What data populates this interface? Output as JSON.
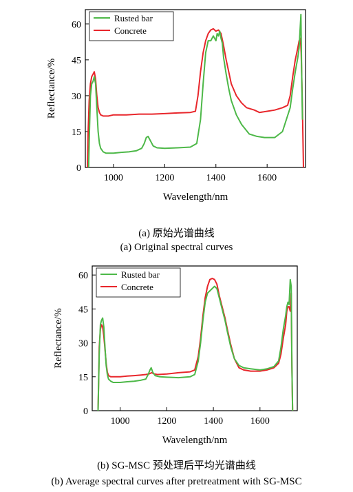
{
  "captions": {
    "a_cn": "(a)  原始光谱曲线",
    "a_en": "(a) Original spectral curves",
    "b_cn": "(b) SG-MSC 预处理后平均光谱曲线",
    "b_en": "(b) Average spectral curves after pretreatment with SG-MSC"
  },
  "colors": {
    "rusted_bar": "#4db848",
    "concrete": "#e8262b"
  },
  "chart_data": [
    {
      "type": "line",
      "title": "",
      "xlabel": "Wavelength/nm",
      "ylabel": "Reflectance/%",
      "xlim": [
        890,
        1750
      ],
      "ylim": [
        0,
        66
      ],
      "xticks": [
        1000,
        1200,
        1400,
        1600
      ],
      "yticks": [
        0,
        15,
        30,
        45,
        60
      ],
      "grid": false,
      "legend_position": "top-left",
      "series": [
        {
          "name": "Rusted bar",
          "color": "#4db848",
          "x": [
            903,
            906,
            910,
            915,
            920,
            925,
            930,
            935,
            940,
            945,
            950,
            960,
            970,
            985,
            1000,
            1030,
            1060,
            1090,
            1110,
            1120,
            1128,
            1135,
            1145,
            1155,
            1170,
            1200,
            1250,
            1300,
            1325,
            1340,
            1350,
            1360,
            1370,
            1380,
            1390,
            1395,
            1400,
            1405,
            1410,
            1415,
            1420,
            1425,
            1430,
            1440,
            1450,
            1460,
            1480,
            1500,
            1530,
            1560,
            1590,
            1630,
            1660,
            1690,
            1700,
            1710,
            1720,
            1725,
            1728,
            1732,
            1735,
            1738
          ],
          "y": [
            0,
            15,
            30,
            35,
            36,
            38,
            35,
            25,
            15,
            10,
            8,
            6.5,
            6,
            6,
            6,
            6.3,
            6.5,
            7,
            8,
            10,
            12.5,
            13,
            11,
            9,
            8.2,
            8,
            8.2,
            8.5,
            10,
            20,
            35,
            48,
            53,
            53,
            55,
            54,
            53,
            56,
            55,
            57,
            54,
            52,
            46,
            39,
            33,
            28,
            22,
            18,
            14,
            13,
            12.5,
            12.5,
            15,
            25,
            33,
            40,
            46,
            50,
            56,
            64,
            40,
            20
          ]
        },
        {
          "name": "Concrete",
          "color": "#e8262b",
          "x": [
            898,
            901,
            905,
            910,
            915,
            920,
            925,
            930,
            935,
            940,
            945,
            950,
            960,
            980,
            1000,
            1050,
            1100,
            1150,
            1200,
            1250,
            1300,
            1320,
            1330,
            1340,
            1350,
            1360,
            1370,
            1380,
            1390,
            1400,
            1410,
            1420,
            1430,
            1440,
            1450,
            1460,
            1480,
            1500,
            1520,
            1550,
            1570,
            1600,
            1630,
            1660,
            1680,
            1690,
            1700,
            1710,
            1720,
            1725,
            1730,
            1733,
            1738,
            1742
          ],
          "y": [
            0,
            15,
            28,
            35,
            38,
            39,
            40,
            37,
            30,
            25,
            23,
            22,
            21.5,
            21.5,
            22,
            22,
            22.3,
            22.3,
            22.5,
            22.8,
            23,
            23.5,
            30,
            40,
            48,
            53,
            56,
            57.5,
            58,
            57,
            57.5,
            56,
            51,
            45,
            40,
            35,
            30,
            27,
            25,
            24,
            23,
            23.5,
            24,
            25,
            26,
            30,
            38,
            45,
            50,
            53,
            54,
            48,
            25,
            0
          ]
        }
      ]
    },
    {
      "type": "line",
      "title": "",
      "xlabel": "Wavelength/nm",
      "ylabel": "Reflectance/%",
      "xlim": [
        880,
        1760
      ],
      "ylim": [
        0,
        64
      ],
      "xticks": [
        1000,
        1200,
        1400,
        1600
      ],
      "yticks": [
        0,
        15,
        30,
        45,
        60
      ],
      "grid": false,
      "legend_position": "top-left",
      "series": [
        {
          "name": "Rusted bar",
          "color": "#4db848",
          "x": [
            905,
            910,
            915,
            920,
            925,
            930,
            935,
            940,
            945,
            950,
            960,
            970,
            985,
            1000,
            1030,
            1060,
            1090,
            1110,
            1120,
            1128,
            1133,
            1140,
            1150,
            1170,
            1200,
            1250,
            1300,
            1320,
            1335,
            1345,
            1355,
            1365,
            1375,
            1385,
            1395,
            1405,
            1415,
            1425,
            1440,
            1450,
            1460,
            1475,
            1490,
            1510,
            1530,
            1560,
            1600,
            1630,
            1660,
            1680,
            1690,
            1700,
            1710,
            1715,
            1720,
            1725,
            1730,
            1734,
            1737,
            1740
          ],
          "y": [
            0,
            25,
            38,
            40,
            41,
            37,
            28,
            20,
            16,
            14,
            13,
            12.5,
            12.5,
            12.5,
            12.8,
            13,
            13.5,
            14,
            16,
            18,
            19,
            17,
            15.5,
            15,
            14.8,
            14.6,
            15,
            16,
            22,
            30,
            40,
            48,
            52,
            53,
            54,
            55,
            54,
            50,
            44,
            40,
            35,
            28,
            23,
            20,
            19,
            18.5,
            18,
            18.5,
            19.5,
            22,
            28,
            36,
            42,
            46,
            48,
            47,
            58,
            55,
            20,
            0
          ]
        },
        {
          "name": "Concrete",
          "color": "#e8262b",
          "x": [
            905,
            910,
            915,
            920,
            925,
            930,
            935,
            940,
            945,
            950,
            960,
            975,
            1000,
            1030,
            1060,
            1090,
            1110,
            1125,
            1135,
            1145,
            1160,
            1200,
            1250,
            1300,
            1320,
            1335,
            1345,
            1355,
            1365,
            1375,
            1385,
            1395,
            1405,
            1415,
            1425,
            1440,
            1450,
            1460,
            1475,
            1490,
            1510,
            1530,
            1560,
            1600,
            1630,
            1660,
            1680,
            1690,
            1700,
            1710,
            1715,
            1720,
            1725,
            1730,
            1734,
            1737,
            1740
          ],
          "y": [
            0,
            28,
            36,
            38,
            37,
            33,
            27,
            21,
            17,
            15.5,
            15,
            15,
            15,
            15.3,
            15.5,
            15.8,
            16,
            16.3,
            16.8,
            16.3,
            16,
            16.2,
            16.8,
            17.2,
            18,
            24,
            32,
            42,
            50,
            55,
            58,
            58.5,
            58,
            56,
            51,
            45,
            41,
            36,
            29,
            23,
            19,
            18,
            17.5,
            17.5,
            18,
            19,
            21,
            25,
            32,
            38,
            44,
            46,
            46,
            44,
            52,
            20,
            0
          ]
        }
      ]
    }
  ]
}
